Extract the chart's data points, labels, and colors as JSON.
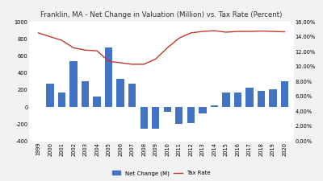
{
  "title": "Franklin, MA - Net Change in Valuation (Million) vs. Tax Rate (Percent)",
  "years": [
    1999,
    2000,
    2001,
    2002,
    2003,
    2004,
    2005,
    2006,
    2007,
    2008,
    2009,
    2010,
    2011,
    2012,
    2013,
    2014,
    2015,
    2016,
    2017,
    2018,
    2019,
    2020
  ],
  "net_change": [
    0,
    270,
    175,
    540,
    300,
    120,
    700,
    330,
    270,
    -250,
    -250,
    -60,
    -200,
    -185,
    -75,
    20,
    175,
    170,
    230,
    185,
    210,
    305
  ],
  "tax_rate": [
    14.5,
    14.0,
    13.5,
    12.5,
    12.2,
    12.1,
    10.7,
    10.5,
    10.3,
    10.3,
    11.0,
    12.5,
    13.8,
    14.5,
    14.7,
    14.8,
    14.6,
    14.7,
    14.7,
    14.75,
    14.7,
    14.65
  ],
  "bar_color": "#4472C4",
  "line_color": "#C0392B",
  "ylim_left": [
    -400,
    1000
  ],
  "ylim_right": [
    0.0,
    16.0
  ],
  "yticks_left": [
    -400,
    -200,
    0,
    200,
    400,
    600,
    800,
    1000
  ],
  "yticks_right_vals": [
    0.0,
    2.0,
    4.0,
    6.0,
    8.0,
    10.0,
    12.0,
    14.0,
    16.0
  ],
  "yticks_right_labels": [
    "0.00%",
    "2.00%",
    "4.00%",
    "6.00%",
    "8.00%",
    "10.00%",
    "12.00%",
    "14.00%",
    "16.00%"
  ],
  "legend_labels": [
    "Net Change (M)",
    "Tax Rate"
  ],
  "background_color": "#F2F2F2",
  "plot_bg_color": "#FFFFFF",
  "grid_color": "#FFFFFF",
  "title_fontsize": 6.2,
  "tick_fontsize": 4.8,
  "legend_fontsize": 5.0
}
